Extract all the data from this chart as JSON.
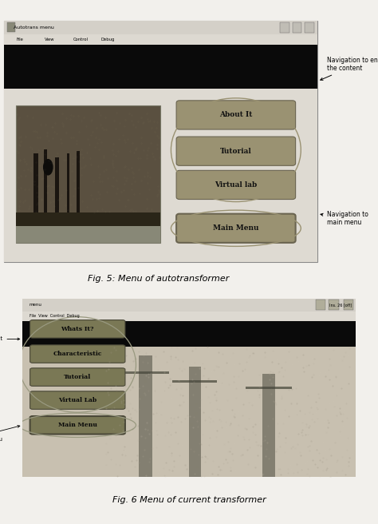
{
  "fig_caption1": "Fig. 5: Menu of autotransformer",
  "fig_caption2": "Fig. 6 Menu of current transformer",
  "bg_color": "#f2f0ec",
  "caption_fontsize": 8,
  "fig1": {
    "window_title": "Autotrans menu",
    "menu_items": [
      "File",
      "View",
      "Control",
      "Debug"
    ],
    "buttons": [
      "About It",
      "Tutorial",
      "Virtual lab",
      "Main Menu"
    ],
    "annotation1_text": "Navigation to enter\nthe content",
    "annotation2_text": "Navigation to\nmain menu"
  },
  "fig2": {
    "window_title": "menu",
    "window_subtitle": "File  View  Control  Debug",
    "buttons": [
      "Whats It?",
      "Characteristic",
      "Tutorial",
      "Virtual Lab",
      "Main Menu"
    ],
    "annotation1_text": "Navigation to content",
    "annotation2_text": "Navigation to main menu"
  }
}
